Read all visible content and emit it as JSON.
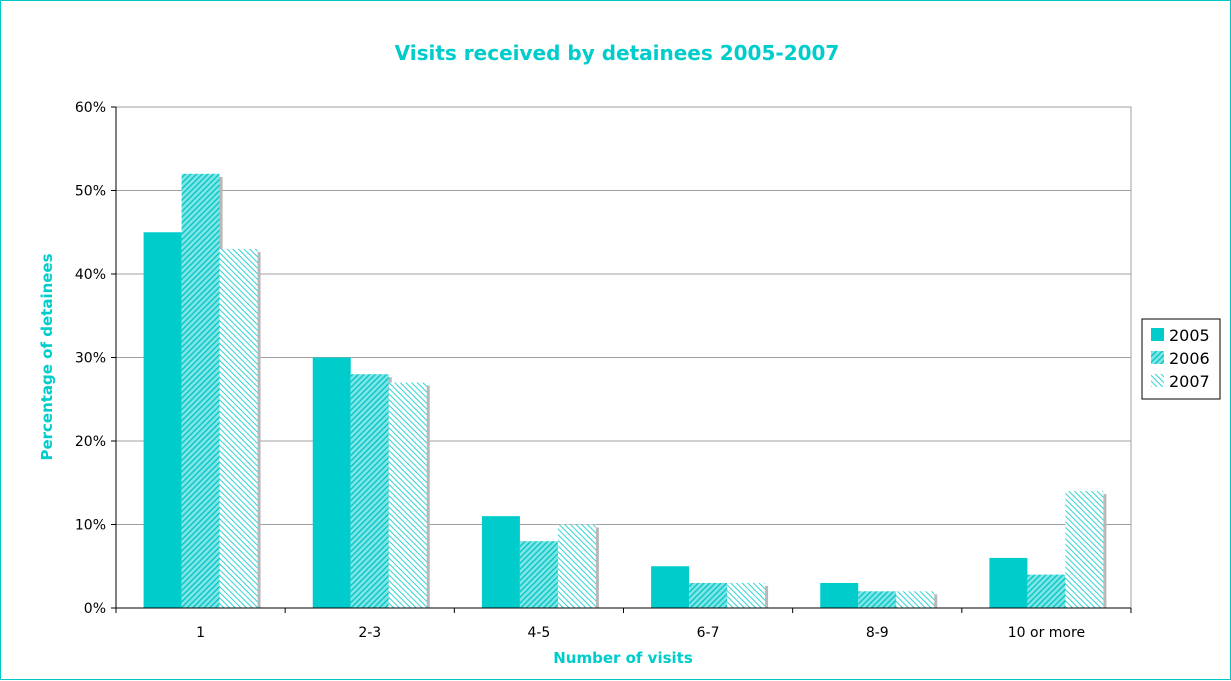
{
  "colors": {
    "accent": "#00cccc",
    "text": "#000000",
    "grid": "#a0a0a0",
    "shadow": "#b8b8b8"
  },
  "chart_data": {
    "type": "bar",
    "title": "Visits received by detainees 2005-2007",
    "xlabel": "Number of visits",
    "ylabel": "Percentage of detainees",
    "categories": [
      "1",
      "2-3",
      "4-5",
      "6-7",
      "8-9",
      "10 or more"
    ],
    "series": [
      {
        "name": "2005",
        "pattern": "solid",
        "values": [
          45,
          30,
          11,
          5,
          3,
          6
        ]
      },
      {
        "name": "2006",
        "pattern": "dense-hatch",
        "values": [
          52,
          28,
          8,
          3,
          2,
          4
        ]
      },
      {
        "name": "2007",
        "pattern": "light-hatch",
        "values": [
          43,
          27,
          10,
          3,
          2,
          14
        ]
      }
    ],
    "ylim": [
      0,
      60
    ],
    "yticks": [
      "0%",
      "10%",
      "20%",
      "30%",
      "40%",
      "50%",
      "60%"
    ],
    "grid": true,
    "legend_position": "right"
  }
}
